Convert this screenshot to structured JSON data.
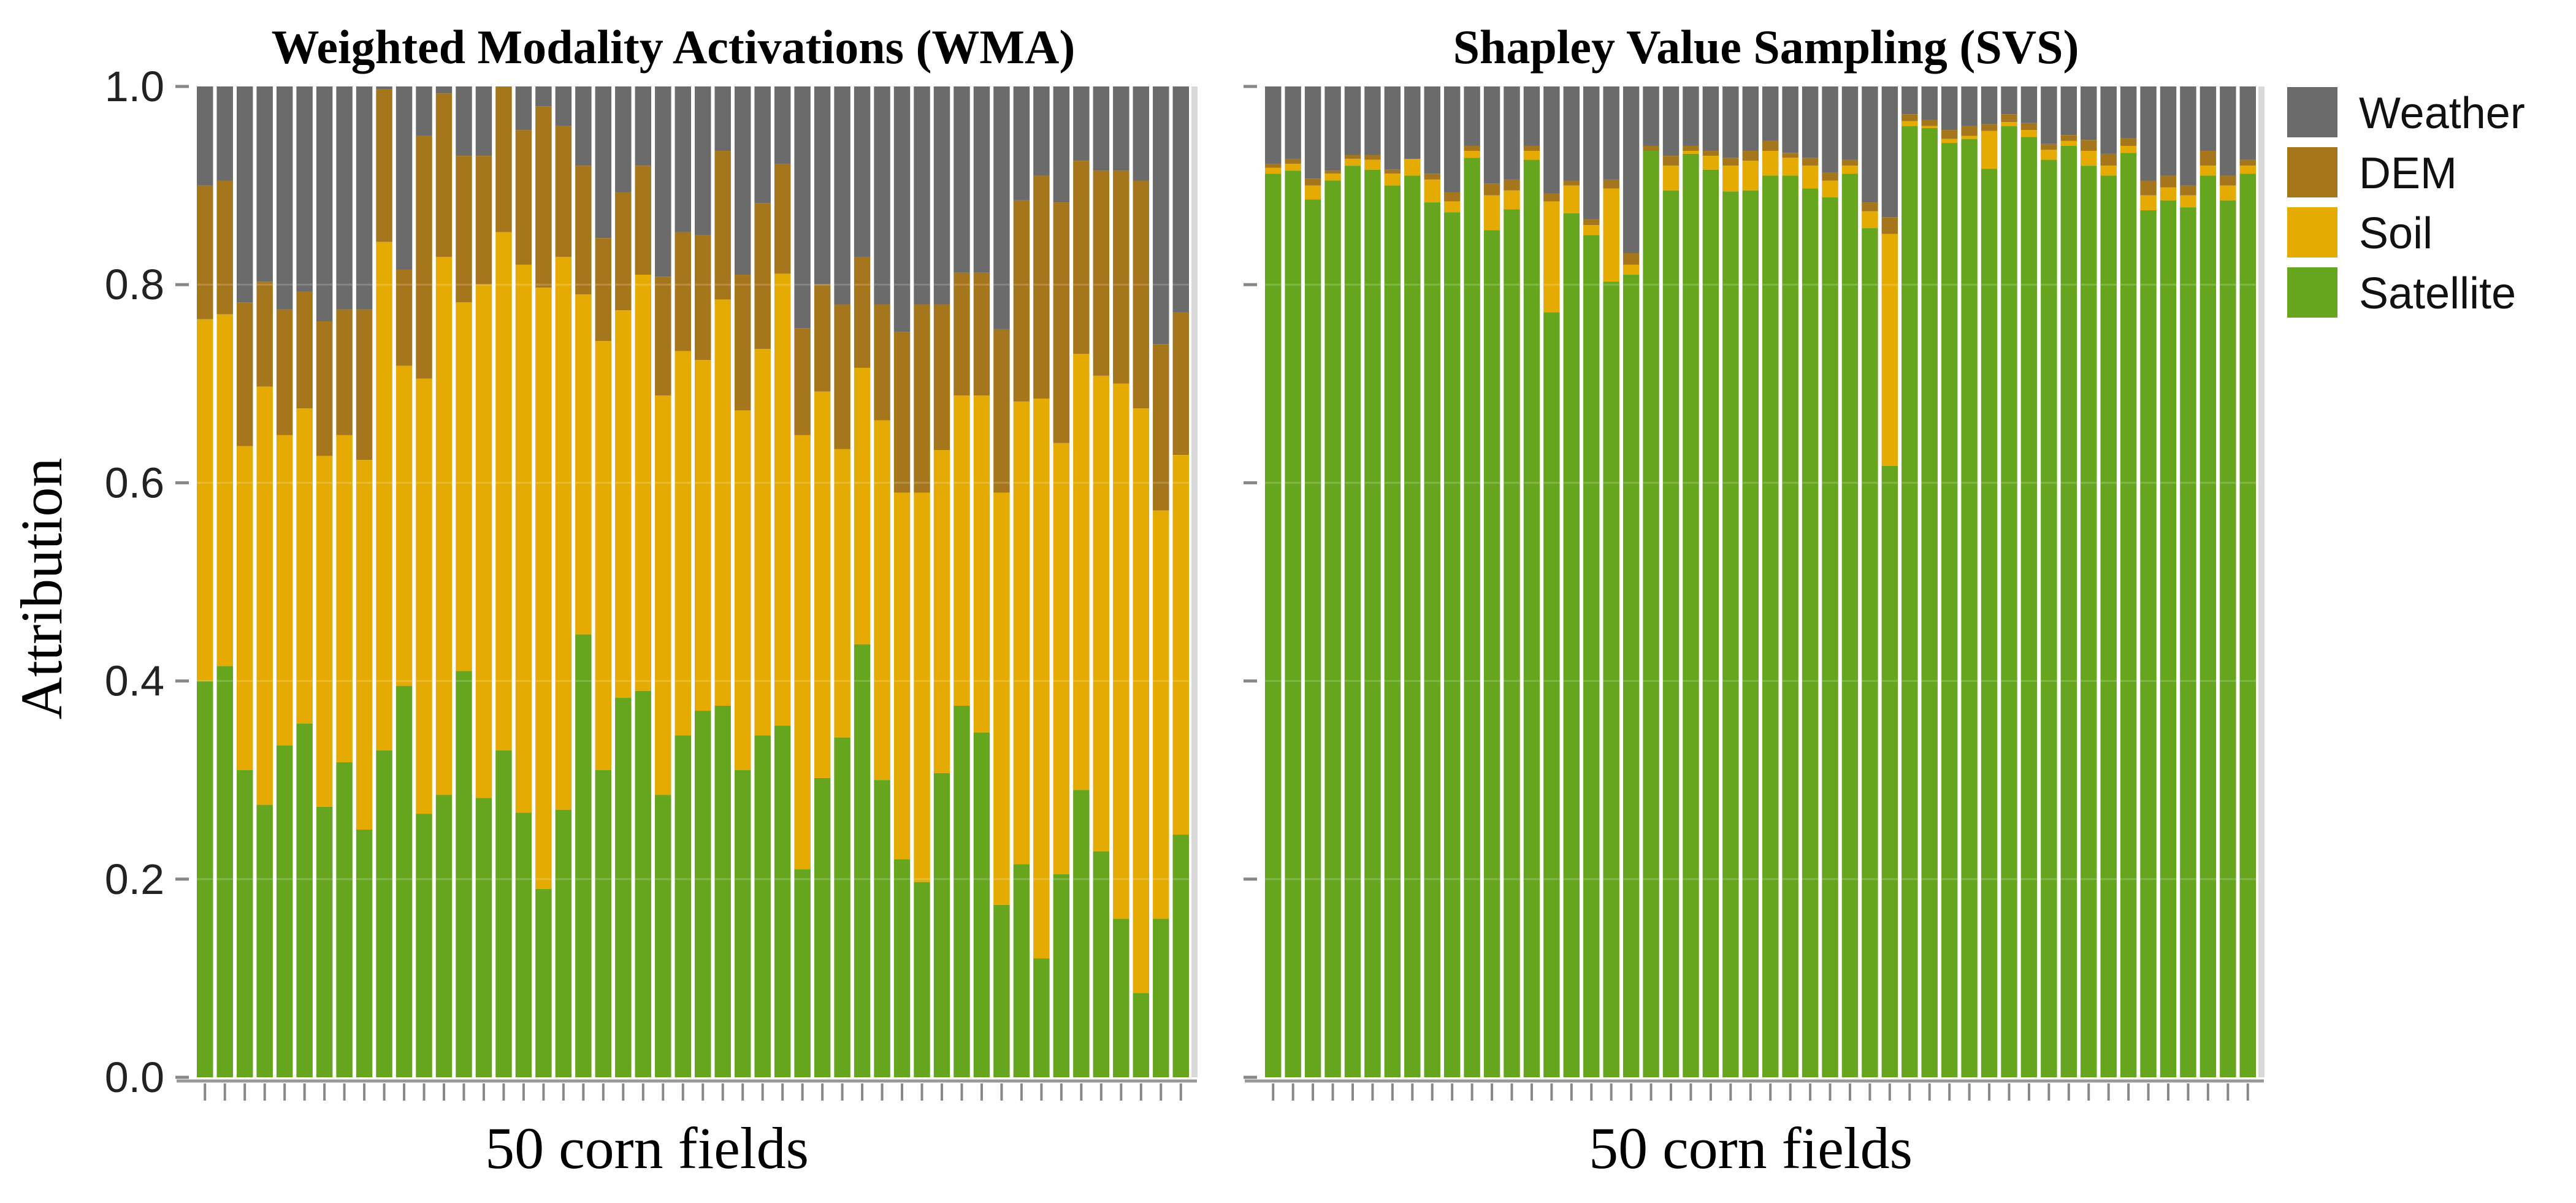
{
  "chart_data": {
    "type": "bar",
    "stacked": true,
    "ylabel": "Attribution",
    "ylim": [
      0,
      1
    ],
    "yticks": [
      "0.0",
      "0.2",
      "0.4",
      "0.6",
      "0.8",
      "1.0"
    ],
    "legend_position": "right",
    "series_order": [
      "Satellite",
      "Soil",
      "DEM",
      "Weather"
    ],
    "legend": [
      {
        "name": "Weather",
        "color": "#6b6b6b"
      },
      {
        "name": "DEM",
        "color": "#a6761d"
      },
      {
        "name": "Soil",
        "color": "#e6ab02"
      },
      {
        "name": "Satellite",
        "color": "#66a61e"
      }
    ],
    "panels": [
      {
        "title": "Weighted Modality Activations (WMA)",
        "xlabel": "50 corn fields",
        "n_fields": 50,
        "satellite_top": [
          0.4,
          0.415,
          0.31,
          0.275,
          0.335,
          0.357,
          0.273,
          0.318,
          0.25,
          0.33,
          0.395,
          0.266,
          0.285,
          0.41,
          0.282,
          0.33,
          0.267,
          0.19,
          0.27,
          0.447,
          0.31,
          0.383,
          0.39,
          0.285,
          0.345,
          0.37,
          0.375,
          0.31,
          0.345,
          0.355,
          0.21,
          0.302,
          0.343,
          0.437,
          0.3,
          0.22,
          0.197,
          0.307,
          0.375,
          0.348,
          0.174,
          0.215,
          0.12,
          0.205,
          0.29,
          0.228,
          0.16,
          0.085,
          0.16,
          0.245
        ],
        "soil_top": [
          0.765,
          0.77,
          0.637,
          0.697,
          0.648,
          0.675,
          0.627,
          0.648,
          0.623,
          0.843,
          0.718,
          0.705,
          0.828,
          0.782,
          0.8,
          0.853,
          0.82,
          0.797,
          0.828,
          0.79,
          0.743,
          0.774,
          0.81,
          0.688,
          0.733,
          0.724,
          0.785,
          0.673,
          0.735,
          0.811,
          0.648,
          0.692,
          0.634,
          0.716,
          0.663,
          0.59,
          0.59,
          0.633,
          0.688,
          0.688,
          0.59,
          0.682,
          0.685,
          0.64,
          0.73,
          0.708,
          0.7,
          0.675,
          0.572,
          0.628
        ],
        "dem_top": [
          0.9,
          0.905,
          0.782,
          0.803,
          0.775,
          0.793,
          0.763,
          0.775,
          0.775,
          0.997,
          0.815,
          0.95,
          0.993,
          0.93,
          0.93,
          1.0,
          0.956,
          0.98,
          0.96,
          0.92,
          0.847,
          0.893,
          0.92,
          0.808,
          0.853,
          0.85,
          0.935,
          0.81,
          0.882,
          0.922,
          0.756,
          0.8,
          0.78,
          0.828,
          0.78,
          0.752,
          0.78,
          0.78,
          0.812,
          0.812,
          0.755,
          0.885,
          0.91,
          0.883,
          0.925,
          0.915,
          0.915,
          0.905,
          0.74,
          0.772
        ]
      },
      {
        "title": "Shapley Value Sampling (SVS)",
        "xlabel": "50 corn fields",
        "n_fields": 50,
        "satellite_top": [
          0.912,
          0.915,
          0.886,
          0.905,
          0.92,
          0.916,
          0.9,
          0.91,
          0.883,
          0.873,
          0.928,
          0.855,
          0.876,
          0.926,
          0.772,
          0.872,
          0.85,
          0.803,
          0.81,
          0.935,
          0.895,
          0.932,
          0.916,
          0.894,
          0.895,
          0.91,
          0.91,
          0.897,
          0.888,
          0.912,
          0.857,
          0.617,
          0.96,
          0.958,
          0.943,
          0.947,
          0.917,
          0.96,
          0.949,
          0.926,
          0.94,
          0.92,
          0.91,
          0.933,
          0.875,
          0.885,
          0.878,
          0.91,
          0.885,
          0.912
        ],
        "soil_top": [
          0.918,
          0.922,
          0.9,
          0.912,
          0.927,
          0.926,
          0.912,
          0.927,
          0.906,
          0.884,
          0.935,
          0.89,
          0.895,
          0.935,
          0.884,
          0.9,
          0.86,
          0.897,
          0.82,
          0.935,
          0.92,
          0.935,
          0.93,
          0.92,
          0.925,
          0.935,
          0.928,
          0.92,
          0.905,
          0.92,
          0.874,
          0.851,
          0.965,
          0.96,
          0.947,
          0.95,
          0.955,
          0.964,
          0.956,
          0.936,
          0.945,
          0.935,
          0.92,
          0.94,
          0.89,
          0.898,
          0.89,
          0.92,
          0.9,
          0.92
        ],
        "dem_top": [
          0.922,
          0.927,
          0.907,
          0.915,
          0.931,
          0.931,
          0.916,
          0.918,
          0.912,
          0.893,
          0.94,
          0.902,
          0.906,
          0.94,
          0.892,
          0.905,
          0.866,
          0.906,
          0.832,
          0.94,
          0.93,
          0.94,
          0.935,
          0.928,
          0.935,
          0.945,
          0.933,
          0.928,
          0.913,
          0.926,
          0.883,
          0.868,
          0.972,
          0.966,
          0.956,
          0.96,
          0.962,
          0.972,
          0.963,
          0.942,
          0.951,
          0.946,
          0.932,
          0.948,
          0.905,
          0.91,
          0.9,
          0.935,
          0.91,
          0.926
        ]
      }
    ]
  }
}
